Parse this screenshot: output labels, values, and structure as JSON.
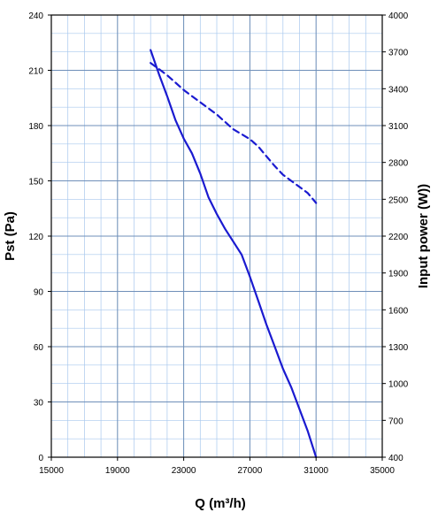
{
  "chart_data": {
    "type": "line",
    "title": "",
    "xlabel": "Q (m³/h)",
    "ylabel": "Pst (Pa)",
    "y2label": "Input power  (W))",
    "xlim": [
      15000,
      35000
    ],
    "ylim": [
      0,
      240
    ],
    "y2lim": [
      400,
      4000
    ],
    "x_ticks": [
      15000,
      19000,
      23000,
      27000,
      31000,
      35000
    ],
    "x_tick_labels": [
      "15000",
      "19000",
      "23000",
      "27000",
      "31000",
      "35000"
    ],
    "y_ticks": [
      0,
      30,
      60,
      90,
      120,
      150,
      180,
      210,
      240
    ],
    "y_tick_labels": [
      "0",
      "30",
      "60",
      "90",
      "120",
      "150",
      "180",
      "210",
      "240"
    ],
    "y2_ticks": [
      400,
      700,
      1000,
      1300,
      1600,
      1900,
      2200,
      2500,
      2800,
      3100,
      3400,
      3700,
      4000
    ],
    "y2_tick_labels": [
      "400",
      "700",
      "1000",
      "1300",
      "1600",
      "1900",
      "2200",
      "2500",
      "2800",
      "3100",
      "3400",
      "3700",
      "4000"
    ],
    "grid": true,
    "colors": {
      "curve": "#1a1ad0",
      "grid": "#a8c8ee",
      "axis": "#000000"
    },
    "series": [
      {
        "axis": "left",
        "style": "solid",
        "x": [
          21000,
          21500,
          22000,
          22500,
          23000,
          23500,
          24000,
          24500,
          25000,
          25500,
          26000,
          26500,
          27000,
          27500,
          28000,
          28500,
          29000,
          29500,
          30000,
          30500,
          31000
        ],
        "values": [
          221,
          208,
          196,
          183,
          173,
          165,
          154,
          141,
          132,
          124,
          117,
          110,
          98,
          85,
          72,
          60,
          48,
          38,
          26,
          14,
          0
        ]
      },
      {
        "axis": "right",
        "style": "dashed",
        "x": [
          21000,
          21500,
          22000,
          22500,
          23000,
          23500,
          24000,
          24500,
          25000,
          25500,
          26000,
          26500,
          27000,
          27500,
          28000,
          28500,
          29000,
          29500,
          30000,
          30500,
          31000
        ],
        "values": [
          3610,
          3560,
          3510,
          3450,
          3390,
          3340,
          3290,
          3240,
          3190,
          3130,
          3070,
          3030,
          2990,
          2930,
          2850,
          2770,
          2700,
          2650,
          2600,
          2550,
          2470
        ]
      }
    ]
  }
}
